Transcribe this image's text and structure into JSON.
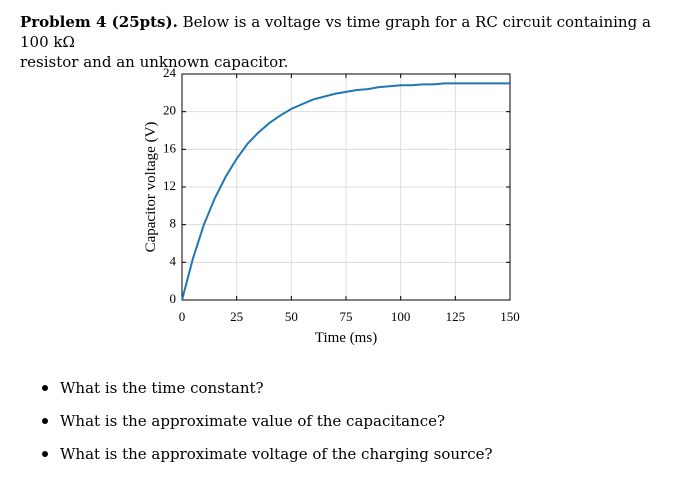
{
  "problem": {
    "heading": "Problem 4 (25pts).",
    "text_line1": "Below is a voltage vs time graph for a RC circuit containing a 100 kΩ",
    "text_line2": "resistor and an unknown capacitor."
  },
  "chart_data": {
    "type": "line",
    "xlabel": "Time (ms)",
    "ylabel": "Capacitor voltage (V)",
    "xlim": [
      0,
      150
    ],
    "ylim": [
      0,
      24
    ],
    "xticks": [
      0,
      25,
      50,
      75,
      100,
      125,
      150
    ],
    "yticks": [
      0,
      4,
      8,
      12,
      16,
      20,
      24
    ],
    "grid": true,
    "series": [
      {
        "color": "#1f77b4",
        "x": [
          0,
          5,
          10,
          15,
          20,
          25,
          30,
          35,
          40,
          45,
          50,
          55,
          60,
          65,
          70,
          75,
          80,
          85,
          90,
          95,
          100,
          105,
          110,
          115,
          120,
          125,
          130,
          135,
          140,
          145,
          150
        ],
        "y": [
          0,
          4.4,
          8.0,
          10.8,
          13.1,
          15.0,
          16.6,
          17.8,
          18.8,
          19.6,
          20.3,
          20.8,
          21.3,
          21.6,
          21.9,
          22.1,
          22.3,
          22.4,
          22.6,
          22.7,
          22.8,
          22.8,
          22.9,
          22.9,
          23.0,
          23.0,
          23.0,
          23.0,
          23.0,
          23.0,
          23.0
        ]
      }
    ]
  },
  "questions": [
    "What is the time constant?",
    "What is the approximate value of the capacitance?",
    "What is the approximate voltage of the charging source?"
  ]
}
